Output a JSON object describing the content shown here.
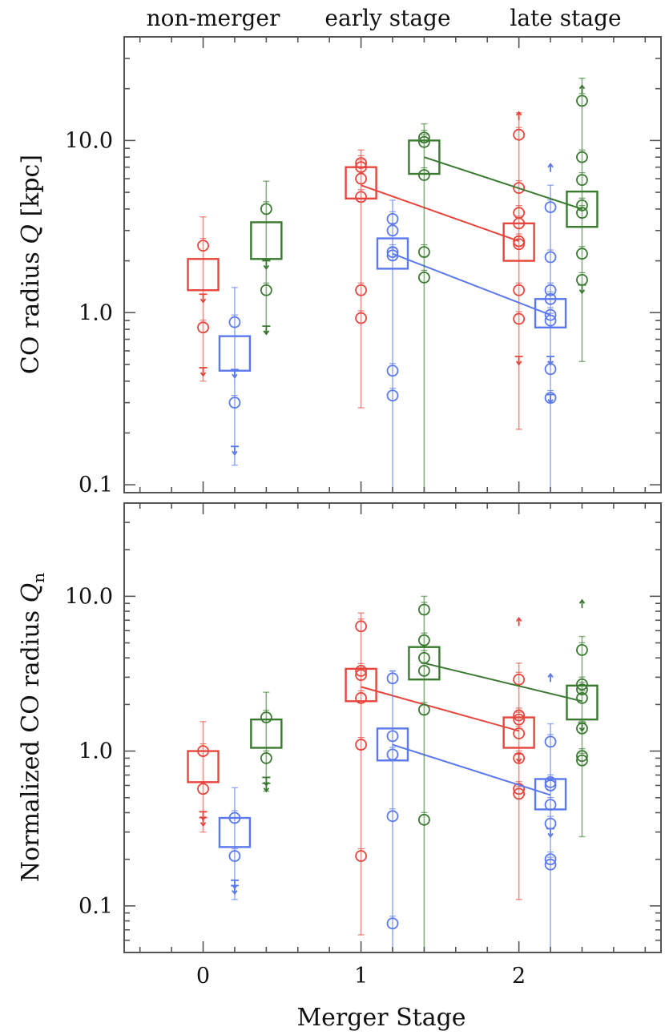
{
  "figure": {
    "stage_labels": [
      "non-merger",
      "early stage",
      "late stage"
    ],
    "xlabel": "Merger Stage"
  },
  "colors": {
    "red": "#e8453c",
    "blue": "#5a78f0",
    "green": "#3a7a30",
    "axis": "#555555"
  },
  "chart_data": [
    {
      "type": "scatter",
      "panel": "top",
      "title": "",
      "xlabel": "Merger Stage",
      "ylabel_main": "CO radius ",
      "ylabel_var": "Q",
      "ylabel_sub": "",
      "ylabel_suffix": " [kpc]",
      "yscale": "log",
      "xlim": [
        -0.5,
        2.9
      ],
      "ylim": [
        0.09,
        40
      ],
      "x_ticks": [
        0,
        1,
        2
      ],
      "y_ticks": [
        0.1,
        1.0,
        10.0
      ],
      "y_tick_labels": [
        "0.1",
        "1.0",
        "10.0"
      ],
      "series": [
        {
          "name": "red",
          "color": "red",
          "offset": 0.0,
          "medians": [
            1.65,
            5.5,
            2.6
          ],
          "box_ranges": [
            [
              1.35,
              2.05
            ],
            [
              4.6,
              7.0
            ],
            [
              2.0,
              3.3
            ]
          ],
          "points": [
            [
              2.45,
              0.82
            ],
            [
              7.4,
              7.0,
              6.0,
              4.7,
              1.35,
              0.93
            ],
            [
              10.8,
              5.3,
              3.8,
              3.3,
              2.6,
              2.5,
              1.35,
              0.92
            ]
          ],
          "upper_limits": [
            [
              1.15,
              0.43
            ],
            [],
            [
              0.5
            ]
          ],
          "lower_limits": [
            [],
            [],
            [
              14.0
            ]
          ],
          "error_ranges": [
            [
              0.4,
              3.6
            ],
            [
              0.28,
              8.8
            ],
            [
              0.21,
              14.5
            ]
          ]
        },
        {
          "name": "blue",
          "color": "blue",
          "offset": 0.2,
          "medians": [
            0.58,
            2.2,
            0.97
          ],
          "box_ranges": [
            [
              0.46,
              0.73
            ],
            [
              1.8,
              2.7
            ],
            [
              0.82,
              1.2
            ]
          ],
          "points": [
            [
              0.88,
              0.3
            ],
            [
              3.5,
              3.0,
              2.25,
              2.15,
              0.46,
              0.33
            ],
            [
              4.1,
              2.1,
              1.35,
              1.2,
              0.97,
              0.9,
              0.47,
              0.32
            ]
          ],
          "upper_limits": [
            [
              0.42,
              0.15
            ],
            [],
            [
              0.5,
              0.3
            ]
          ],
          "lower_limits": [
            [],
            [],
            [
              7.0
            ]
          ],
          "error_ranges": [
            [
              0.13,
              1.4
            ],
            [
              0.09,
              4.5
            ],
            [
              0.09,
              5.5
            ]
          ]
        },
        {
          "name": "green",
          "color": "green",
          "offset": 0.4,
          "medians": [
            2.6,
            8.0,
            4.0
          ],
          "box_ranges": [
            [
              2.05,
              3.35
            ],
            [
              6.4,
              10.0
            ],
            [
              3.15,
              5.05
            ]
          ],
          "points": [
            [
              4.0,
              1.35
            ],
            [
              10.4,
              9.8,
              6.3,
              2.25,
              1.6
            ],
            [
              17.0,
              8.0,
              5.9,
              4.2,
              3.8,
              2.2,
              1.55
            ]
          ],
          "upper_limits": [
            [
              1.8,
              0.75
            ],
            [],
            [
              1.3
            ]
          ],
          "lower_limits": [
            [],
            [],
            [
              20.0
            ]
          ],
          "error_ranges": [
            [
              0.78,
              5.8
            ],
            [
              0.09,
              12.5
            ],
            [
              0.52,
              23.0
            ]
          ]
        }
      ]
    },
    {
      "type": "scatter",
      "panel": "bottom",
      "title": "",
      "xlabel": "Merger Stage",
      "ylabel_main": "Normalized CO radius ",
      "ylabel_var": "Q",
      "ylabel_sub": "n",
      "ylabel_suffix": "",
      "yscale": "log",
      "xlim": [
        -0.5,
        2.9
      ],
      "ylim": [
        0.05,
        40
      ],
      "x_ticks": [
        0,
        1,
        2
      ],
      "y_ticks": [
        0.1,
        1.0,
        10.0
      ],
      "y_tick_labels": [
        "0.1",
        "1.0",
        "10.0"
      ],
      "series": [
        {
          "name": "red",
          "color": "red",
          "offset": 0.0,
          "medians": [
            0.8,
            2.6,
            1.35
          ],
          "box_ranges": [
            [
              0.63,
              1.0
            ],
            [
              2.1,
              3.4
            ],
            [
              1.05,
              1.65
            ]
          ],
          "points": [
            [
              1.0,
              0.57
            ],
            [
              6.4,
              3.3,
              3.1,
              2.2,
              1.1,
              0.21
            ],
            [
              2.9,
              1.7,
              1.6,
              1.3,
              0.9,
              0.57,
              0.53
            ]
          ],
          "upper_limits": [
            [
              0.36,
              0.33
            ],
            [],
            [
              0.85
            ]
          ],
          "lower_limits": [
            [],
            [],
            [
              6.9
            ]
          ],
          "error_ranges": [
            [
              0.3,
              1.55
            ],
            [
              0.065,
              7.8
            ],
            [
              0.11,
              3.7
            ]
          ]
        },
        {
          "name": "blue",
          "color": "blue",
          "offset": 0.2,
          "medians": [
            0.3,
            1.1,
            0.52
          ],
          "box_ranges": [
            [
              0.24,
              0.37
            ],
            [
              0.87,
              1.4
            ],
            [
              0.42,
              0.66
            ]
          ],
          "points": [
            [
              0.37,
              0.21
            ],
            [
              2.95,
              1.25,
              0.95,
              0.38,
              0.077
            ],
            [
              1.15,
              0.63,
              0.6,
              0.45,
              0.34,
              0.2,
              0.185
            ]
          ],
          "upper_limits": [
            [
              0.13,
              0.12
            ],
            [],
            [
              0.28
            ]
          ],
          "lower_limits": [
            [],
            [],
            [
              3.0
            ]
          ],
          "error_ranges": [
            [
              0.11,
              0.58
            ],
            [
              0.05,
              3.3
            ],
            [
              0.05,
              1.5
            ]
          ]
        },
        {
          "name": "green",
          "color": "green",
          "offset": 0.4,
          "medians": [
            1.3,
            3.7,
            2.1
          ],
          "box_ranges": [
            [
              1.05,
              1.6
            ],
            [
              2.9,
              4.7
            ],
            [
              1.6,
              2.65
            ]
          ],
          "points": [
            [
              1.65,
              0.9
            ],
            [
              8.2,
              5.2,
              4.0,
              3.3,
              1.85,
              0.36
            ],
            [
              4.5,
              2.7,
              2.5,
              2.2,
              1.4,
              0.93,
              0.87
            ]
          ],
          "upper_limits": [
            [
              0.6,
              0.55
            ],
            [],
            [
              1.35
            ]
          ],
          "lower_limits": [
            [],
            [],
            [
              9.0
            ]
          ],
          "error_ranges": [
            [
              0.55,
              2.4
            ],
            [
              0.05,
              10.0
            ],
            [
              0.28,
              5.5
            ]
          ]
        }
      ]
    }
  ]
}
